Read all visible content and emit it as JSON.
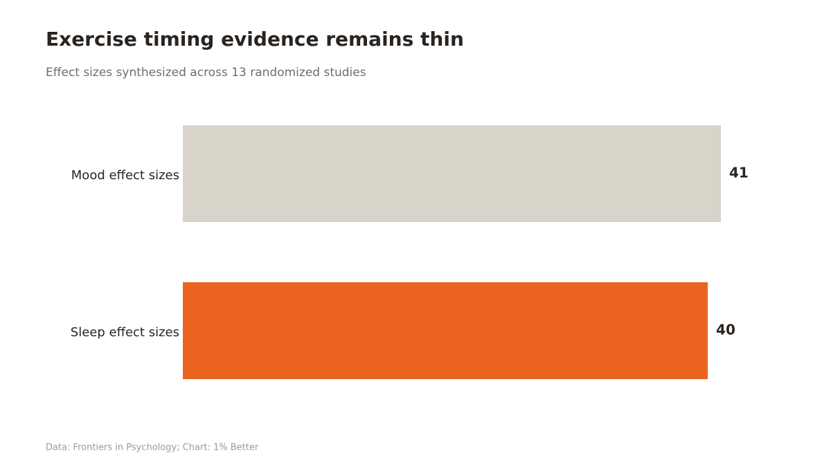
{
  "chart_data": {
    "type": "bar",
    "orientation": "horizontal",
    "title": "Exercise timing evidence remains thin",
    "subtitle": "Effect sizes synthesized across 13 randomized studies",
    "source": "Data: Frontiers in Psychology; Chart: 1% Better",
    "categories": [
      "Mood effect sizes",
      "Sleep effect sizes"
    ],
    "values": [
      41,
      40
    ],
    "colors": [
      "#d9d4ca",
      "#eb6420"
    ]
  }
}
